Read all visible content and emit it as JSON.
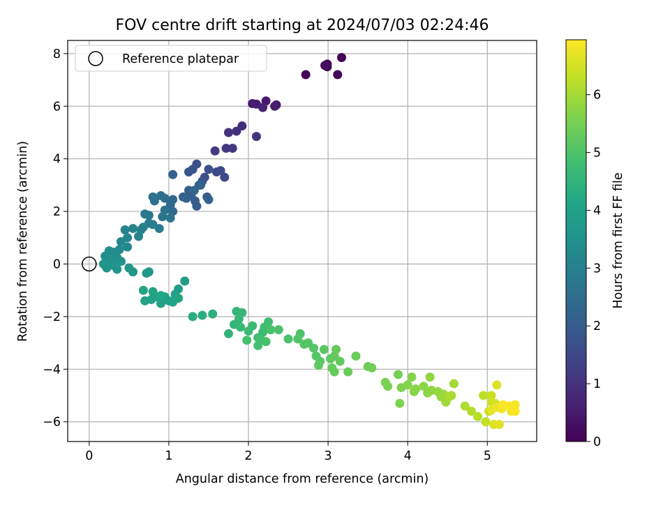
{
  "chart_data": {
    "type": "scatter",
    "title": "FOV centre drift starting at 2024/07/03 02:24:46",
    "xlabel": "Angular distance from reference (arcmin)",
    "ylabel": "Rotation from reference (arcmin)",
    "xlim": [
      -0.27,
      5.62
    ],
    "ylim": [
      -6.75,
      8.5
    ],
    "xticks": [
      0,
      1,
      2,
      3,
      4,
      5
    ],
    "yticks": [
      -6,
      -4,
      -2,
      0,
      2,
      4,
      6,
      8
    ],
    "grid": true,
    "legend": {
      "position": "top-left",
      "entries": [
        "Reference platepar"
      ]
    },
    "reference_point": {
      "x": 0,
      "y": 0
    },
    "colorbar": {
      "label": "Hours from first FF file",
      "colormap": "viridis",
      "range": [
        0,
        6.95
      ],
      "ticks": [
        0,
        1,
        2,
        3,
        4,
        5,
        6
      ]
    },
    "points": [
      [
        2.99,
        7.6,
        0.05
      ],
      [
        3.17,
        7.85,
        0.03
      ],
      [
        2.99,
        7.5,
        0.08
      ],
      [
        3.12,
        7.2,
        0.1
      ],
      [
        2.72,
        7.2,
        0.12
      ],
      [
        2.96,
        7.55,
        0.15
      ],
      [
        2.35,
        6.05,
        0.45
      ],
      [
        2.22,
        6.2,
        0.5
      ],
      [
        2.05,
        6.1,
        0.55
      ],
      [
        2.1,
        6.08,
        0.6
      ],
      [
        2.18,
        5.95,
        0.65
      ],
      [
        2.33,
        6.0,
        0.55
      ],
      [
        1.92,
        5.25,
        0.9
      ],
      [
        1.85,
        5.05,
        0.95
      ],
      [
        1.75,
        5.0,
        1.0
      ],
      [
        2.1,
        4.85,
        1.05
      ],
      [
        1.8,
        4.4,
        1.1
      ],
      [
        1.72,
        4.4,
        1.15
      ],
      [
        1.58,
        4.3,
        1.2
      ],
      [
        1.7,
        3.3,
        1.5
      ],
      [
        1.6,
        3.5,
        1.55
      ],
      [
        1.65,
        3.55,
        1.6
      ],
      [
        1.45,
        3.3,
        1.65
      ],
      [
        1.35,
        3.8,
        1.7
      ],
      [
        1.5,
        3.6,
        1.7
      ],
      [
        1.42,
        3.15,
        1.75
      ],
      [
        1.3,
        3.6,
        1.8
      ],
      [
        1.25,
        3.5,
        1.85
      ],
      [
        1.38,
        3.0,
        1.9
      ],
      [
        1.48,
        2.55,
        1.95
      ],
      [
        1.35,
        2.2,
        2.0
      ],
      [
        1.33,
        2.4,
        2.0
      ],
      [
        1.28,
        2.6,
        2.05
      ],
      [
        1.22,
        2.5,
        2.1
      ],
      [
        1.25,
        2.8,
        2.1
      ],
      [
        1.18,
        2.55,
        2.15
      ],
      [
        1.05,
        3.4,
        2.15
      ],
      [
        1.4,
        3.0,
        2.2
      ],
      [
        1.5,
        2.45,
        2.2
      ],
      [
        1.32,
        2.8,
        2.25
      ],
      [
        1.05,
        2.45,
        2.3
      ],
      [
        1.02,
        2.25,
        2.35
      ],
      [
        1.05,
        2.0,
        2.4
      ],
      [
        0.95,
        2.5,
        2.45
      ],
      [
        0.9,
        2.6,
        2.5
      ],
      [
        0.82,
        2.4,
        2.55
      ],
      [
        0.8,
        2.55,
        2.6
      ],
      [
        0.95,
        2.05,
        2.6
      ],
      [
        1.02,
        1.75,
        2.65
      ],
      [
        0.92,
        1.8,
        2.7
      ],
      [
        0.75,
        1.85,
        2.75
      ],
      [
        0.7,
        1.9,
        2.8
      ],
      [
        0.75,
        1.55,
        2.85
      ],
      [
        0.88,
        1.35,
        2.9
      ],
      [
        0.8,
        1.5,
        2.95
      ],
      [
        0.65,
        1.3,
        3.0
      ],
      [
        0.68,
        1.4,
        3.05
      ],
      [
        0.62,
        1.05,
        3.1
      ],
      [
        0.55,
        1.35,
        3.1
      ],
      [
        0.45,
        1.3,
        3.15
      ],
      [
        0.48,
        1.0,
        3.2
      ],
      [
        0.4,
        0.85,
        3.2
      ],
      [
        0.48,
        0.65,
        3.25
      ],
      [
        0.38,
        0.55,
        3.3
      ],
      [
        0.3,
        0.45,
        3.3
      ],
      [
        0.25,
        0.5,
        3.35
      ],
      [
        0.2,
        0.3,
        3.4
      ],
      [
        0.3,
        0.2,
        3.45
      ],
      [
        0.35,
        0.25,
        3.45
      ],
      [
        0.4,
        0.1,
        3.5
      ],
      [
        0.25,
        0.1,
        3.5
      ],
      [
        0.3,
        -0.05,
        3.55
      ],
      [
        0.22,
        -0.15,
        3.55
      ],
      [
        0.35,
        -0.2,
        3.6
      ],
      [
        0.18,
        0.0,
        3.6
      ],
      [
        0.5,
        -0.15,
        3.65
      ],
      [
        0.55,
        -0.3,
        3.65
      ],
      [
        0.72,
        -0.35,
        3.7
      ],
      [
        0.75,
        -0.3,
        3.7
      ],
      [
        1.2,
        -0.65,
        3.8
      ],
      [
        1.12,
        -0.95,
        3.85
      ],
      [
        1.08,
        -1.15,
        3.9
      ],
      [
        0.95,
        -1.25,
        3.9
      ],
      [
        1.0,
        -1.4,
        3.95
      ],
      [
        0.9,
        -1.5,
        3.95
      ],
      [
        0.78,
        -1.35,
        4.0
      ],
      [
        0.7,
        -1.4,
        4.0
      ],
      [
        0.68,
        -1.0,
        4.05
      ],
      [
        0.8,
        -1.05,
        4.05
      ],
      [
        0.85,
        -1.25,
        4.1
      ],
      [
        1.05,
        -1.45,
        4.1
      ],
      [
        1.12,
        -1.3,
        4.15
      ],
      [
        0.9,
        -1.2,
        4.15
      ],
      [
        1.3,
        -2.0,
        4.3
      ],
      [
        1.42,
        -1.95,
        4.35
      ],
      [
        1.55,
        -1.9,
        4.4
      ],
      [
        1.75,
        -2.65,
        4.5
      ],
      [
        1.82,
        -2.3,
        4.55
      ],
      [
        1.85,
        -1.8,
        4.55
      ],
      [
        1.92,
        -1.85,
        4.6
      ],
      [
        1.88,
        -2.1,
        4.6
      ],
      [
        1.9,
        -2.4,
        4.65
      ],
      [
        2.0,
        -2.55,
        4.7
      ],
      [
        2.05,
        -2.35,
        4.7
      ],
      [
        2.12,
        -2.8,
        4.75
      ],
      [
        2.18,
        -2.6,
        4.75
      ],
      [
        2.2,
        -2.4,
        4.8
      ],
      [
        2.25,
        -2.2,
        4.8
      ],
      [
        2.15,
        -2.85,
        4.85
      ],
      [
        2.12,
        -3.1,
        4.85
      ],
      [
        2.22,
        -2.95,
        4.9
      ],
      [
        1.98,
        -2.9,
        4.9
      ],
      [
        2.28,
        -2.5,
        4.95
      ],
      [
        2.38,
        -2.5,
        4.95
      ],
      [
        2.5,
        -2.85,
        5.0
      ],
      [
        2.65,
        -2.65,
        5.0
      ],
      [
        2.62,
        -2.85,
        5.05
      ],
      [
        2.75,
        -3.0,
        5.05
      ],
      [
        2.82,
        -3.2,
        5.1
      ],
      [
        2.7,
        -3.05,
        5.1
      ],
      [
        2.85,
        -3.5,
        5.1
      ],
      [
        2.95,
        -3.25,
        5.15
      ],
      [
        2.9,
        -3.7,
        5.15
      ],
      [
        2.88,
        -3.85,
        5.2
      ],
      [
        3.03,
        -3.6,
        5.2
      ],
      [
        3.08,
        -3.5,
        5.25
      ],
      [
        3.15,
        -3.7,
        5.25
      ],
      [
        3.1,
        -3.25,
        5.3
      ],
      [
        3.05,
        -3.95,
        5.3
      ],
      [
        3.08,
        -4.1,
        5.3
      ],
      [
        3.25,
        -4.1,
        5.35
      ],
      [
        3.35,
        -3.5,
        5.35
      ],
      [
        3.5,
        -3.9,
        5.4
      ],
      [
        3.55,
        -3.95,
        5.45
      ],
      [
        3.88,
        -4.2,
        5.5
      ],
      [
        3.72,
        -4.5,
        5.55
      ],
      [
        3.75,
        -4.65,
        5.55
      ],
      [
        3.92,
        -4.7,
        5.6
      ],
      [
        3.9,
        -5.3,
        5.6
      ],
      [
        4.0,
        -4.6,
        5.65
      ],
      [
        4.05,
        -4.3,
        5.65
      ],
      [
        4.08,
        -4.85,
        5.7
      ],
      [
        4.1,
        -4.75,
        5.7
      ],
      [
        4.2,
        -4.65,
        5.75
      ],
      [
        4.25,
        -4.9,
        5.75
      ],
      [
        4.28,
        -4.3,
        5.8
      ],
      [
        4.3,
        -4.8,
        5.8
      ],
      [
        4.38,
        -4.85,
        5.85
      ],
      [
        4.42,
        -5.05,
        5.9
      ],
      [
        4.45,
        -4.95,
        5.9
      ],
      [
        4.48,
        -5.25,
        5.95
      ],
      [
        4.55,
        -5.0,
        6.0
      ],
      [
        4.58,
        -4.55,
        6.0
      ],
      [
        4.52,
        -5.05,
        6.05
      ],
      [
        4.72,
        -5.4,
        6.1
      ],
      [
        4.8,
        -5.6,
        6.15
      ],
      [
        4.88,
        -5.8,
        6.2
      ],
      [
        4.95,
        -5.0,
        6.25
      ],
      [
        4.98,
        -6.0,
        6.3
      ],
      [
        5.02,
        -5.6,
        6.35
      ],
      [
        5.05,
        -5.0,
        6.4
      ],
      [
        5.05,
        -5.25,
        6.45
      ],
      [
        5.1,
        -5.3,
        6.5
      ],
      [
        5.12,
        -4.6,
        6.55
      ],
      [
        5.08,
        -6.1,
        6.6
      ],
      [
        5.15,
        -6.1,
        6.65
      ],
      [
        5.05,
        -5.55,
        6.7
      ],
      [
        5.12,
        -5.45,
        6.75
      ],
      [
        5.18,
        -5.5,
        6.8
      ],
      [
        5.3,
        -5.6,
        6.85
      ],
      [
        5.35,
        -5.35,
        6.85
      ],
      [
        5.35,
        -5.6,
        6.9
      ],
      [
        5.28,
        -5.4,
        6.9
      ],
      [
        5.2,
        -5.35,
        6.92
      ]
    ]
  }
}
